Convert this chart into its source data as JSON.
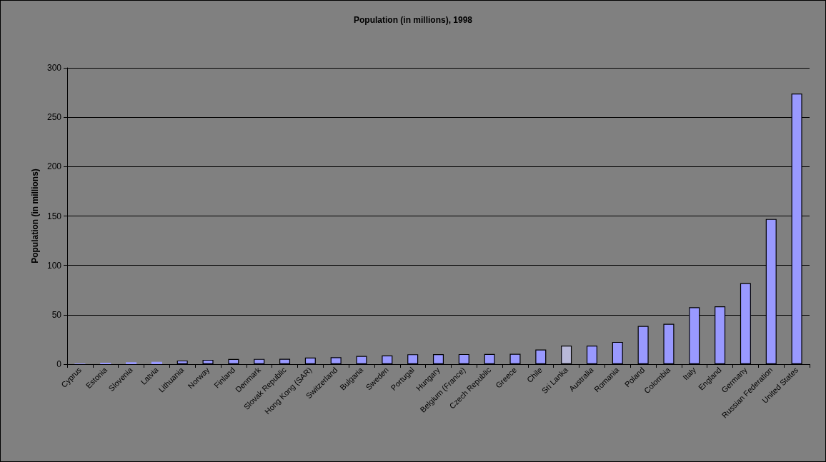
{
  "chart_data": {
    "type": "bar",
    "title": "Population (in millions), 1998",
    "ylabel": "Population (in millions)",
    "categories": [
      "Cyprus",
      "Estonia",
      "Slovenia",
      "Latvia",
      "Lithuania",
      "Norway",
      "Finland",
      "Denmark",
      "Slovak Republic",
      "Hong Kong (SAR)",
      "Switzerland",
      "Bulgaria",
      "Sweden",
      "Portugal",
      "Hungary",
      "Belgium (France)",
      "Czech Republic",
      "Greece",
      "Chile",
      "Sri Lanka",
      "Australia",
      "Romania",
      "Poland",
      "Colombia",
      "Italy",
      "England",
      "Germany",
      "Russian Federation",
      "United States"
    ],
    "values": [
      0.7,
      1.4,
      2,
      2.4,
      3.7,
      4.4,
      5.2,
      5.3,
      5.4,
      6.7,
      7.1,
      8.3,
      8.9,
      10,
      10.1,
      10.2,
      10.3,
      10.5,
      14.8,
      18.8,
      18.8,
      22.5,
      38.7,
      40.8,
      57.6,
      58.6,
      82,
      147,
      274
    ],
    "colors": [
      "#9999ff",
      "#9999ff",
      "#9999ff",
      "#9999ff",
      "#9999ff",
      "#9999ff",
      "#9999ff",
      "#9999ff",
      "#9999ff",
      "#9999ff",
      "#9999ff",
      "#9999ff",
      "#9999ff",
      "#9999ff",
      "#9999ff",
      "#9999ff",
      "#9999ff",
      "#9999ff",
      "#9999ff",
      "#b8b8d8",
      "#9999ff",
      "#9999ff",
      "#9999ff",
      "#9999ff",
      "#9999ff",
      "#9999ff",
      "#9999ff",
      "#9999ff",
      "#9999ff"
    ],
    "ylim": [
      0,
      300
    ],
    "yticks": [
      0,
      50,
      100,
      150,
      200,
      250,
      300
    ],
    "grid": "y"
  }
}
